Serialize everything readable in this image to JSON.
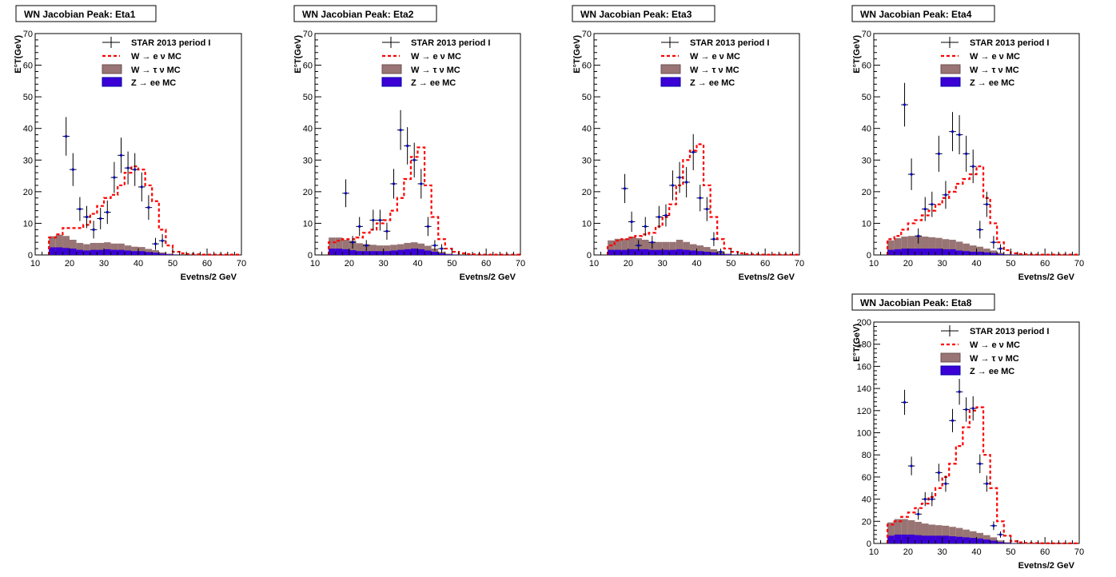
{
  "chart_data": [
    {
      "type": "histogram",
      "title": "WN Jacobian Peak: Eta1",
      "xlabel": "Evetns/2 GeV",
      "ylabel": "E°T(GeV)",
      "xlim": [
        10,
        70
      ],
      "ylim": [
        0,
        70
      ],
      "xticks": [
        10,
        20,
        30,
        40,
        50,
        60,
        70
      ],
      "yticks": [
        0,
        10,
        20,
        30,
        40,
        50,
        60,
        70
      ],
      "legend": [
        "STAR 2013 period I",
        "W → e ν MC",
        "W → τ ν MC",
        "Z → ee MC"
      ],
      "bin_edges": [
        14,
        16,
        18,
        20,
        22,
        24,
        26,
        28,
        30,
        32,
        34,
        36,
        38,
        40,
        42,
        44,
        46,
        48,
        50,
        52,
        54,
        56,
        58,
        60,
        62,
        64,
        66,
        68,
        70
      ],
      "series": [
        {
          "name": "W → e ν MC",
          "values": [
            5.5,
            6.5,
            8.5,
            8.5,
            8.5,
            9.5,
            13,
            15.5,
            18,
            19,
            22,
            26,
            28,
            27,
            22,
            17,
            8,
            3,
            1,
            0.5,
            0.3,
            0.2,
            0.1,
            0.1,
            0.1,
            0.1,
            0.1,
            0.1
          ]
        },
        {
          "name": "W → τ ν MC",
          "values": [
            3.5,
            4,
            3.8,
            2.8,
            2.2,
            2,
            2.2,
            2.2,
            2.2,
            2,
            2,
            1.6,
            1.4,
            1.3,
            1,
            0.8,
            0.4,
            0.2,
            0.1,
            0,
            0,
            0,
            0,
            0,
            0,
            0,
            0,
            0
          ]
        },
        {
          "name": "Z → ee MC",
          "values": [
            2.4,
            2.4,
            2.2,
            2,
            1.6,
            1.4,
            1.6,
            1.6,
            1.8,
            1.6,
            1.6,
            1.4,
            1.2,
            1.2,
            0.9,
            0.7,
            0.4,
            0.2,
            0.1,
            0,
            0,
            0,
            0,
            0,
            0,
            0,
            0,
            0
          ]
        },
        {
          "name": "STAR 2013 period I",
          "points": [
            [
              19,
              37.5
            ],
            [
              21,
              27
            ],
            [
              23,
              14.5
            ],
            [
              25,
              12
            ],
            [
              27,
              8
            ],
            [
              29,
              11.5
            ],
            [
              31,
              13.5
            ],
            [
              33,
              24.5
            ],
            [
              35,
              31.5
            ],
            [
              37,
              27.5
            ],
            [
              39,
              27
            ],
            [
              41,
              21.5
            ],
            [
              43,
              15
            ],
            [
              45,
              3.5
            ],
            [
              47,
              4.5
            ]
          ],
          "errors": [
            6.1,
            5.2,
            3.8,
            3.5,
            2.8,
            3.4,
            3.7,
            4.9,
            5.6,
            5.2,
            5.2,
            4.6,
            3.9,
            1.9,
            2.1
          ]
        }
      ]
    },
    {
      "type": "histogram",
      "title": "WN Jacobian Peak: Eta2",
      "xlabel": "Evetns/2 GeV",
      "ylabel": "E°T(GeV)",
      "xlim": [
        10,
        70
      ],
      "ylim": [
        0,
        70
      ],
      "xticks": [
        10,
        20,
        30,
        40,
        50,
        60,
        70
      ],
      "yticks": [
        0,
        10,
        20,
        30,
        40,
        50,
        60,
        70
      ],
      "legend": [
        "STAR 2013 period I",
        "W → e ν MC",
        "W → τ ν MC",
        "Z → ee MC"
      ],
      "bin_edges": [
        14,
        16,
        18,
        20,
        22,
        24,
        26,
        28,
        30,
        32,
        34,
        36,
        38,
        40,
        42,
        44,
        46,
        48,
        50,
        52,
        54,
        56,
        58,
        60,
        62,
        64,
        66,
        68,
        70
      ],
      "series": [
        {
          "name": "W → e ν MC",
          "values": [
            4,
            4.5,
            5,
            5,
            5.5,
            7,
            8,
            10,
            11,
            14,
            18,
            24,
            31,
            34,
            22,
            12,
            5,
            2,
            1,
            0.5,
            0.3,
            0.2,
            0.1,
            0.1,
            0.1,
            0.1,
            0.1,
            0.1
          ]
        },
        {
          "name": "W → τ ν MC",
          "values": [
            3.5,
            3.5,
            3,
            3,
            2.5,
            2.2,
            2,
            1.8,
            1.8,
            1.8,
            1.8,
            2,
            2,
            1.8,
            1.5,
            1,
            0.5,
            0.2,
            0.1,
            0,
            0,
            0,
            0,
            0,
            0,
            0,
            0,
            0
          ]
        },
        {
          "name": "Z → ee MC",
          "values": [
            2,
            2,
            1.8,
            1.5,
            1.2,
            1.2,
            1.2,
            1.2,
            1.2,
            1.4,
            1.6,
            1.8,
            2,
            1.8,
            1.4,
            1,
            0.5,
            0.2,
            0.1,
            0,
            0,
            0,
            0,
            0,
            0,
            0,
            0,
            0
          ]
        },
        {
          "name": "STAR 2013 period I",
          "points": [
            [
              19,
              19.5
            ],
            [
              21,
              4
            ],
            [
              23,
              9
            ],
            [
              25,
              3
            ],
            [
              27,
              11
            ],
            [
              29,
              11
            ],
            [
              31,
              7.5
            ],
            [
              33,
              22.5
            ],
            [
              35,
              39.5
            ],
            [
              37,
              34.5
            ],
            [
              39,
              30
            ],
            [
              41,
              22.5
            ],
            [
              43,
              9
            ],
            [
              45,
              3
            ],
            [
              47,
              2
            ]
          ],
          "errors": [
            4.4,
            2,
            3,
            1.7,
            3.3,
            3.3,
            2.7,
            4.7,
            6.3,
            5.9,
            5.5,
            4.7,
            3,
            1.7,
            1.4
          ]
        }
      ]
    },
    {
      "type": "histogram",
      "title": "WN Jacobian Peak: Eta3",
      "xlabel": "Evetns/2 GeV",
      "ylabel": "E°T(GeV)",
      "xlim": [
        10,
        70
      ],
      "ylim": [
        0,
        70
      ],
      "xticks": [
        10,
        20,
        30,
        40,
        50,
        60,
        70
      ],
      "yticks": [
        0,
        10,
        20,
        30,
        40,
        50,
        60,
        70
      ],
      "legend": [
        "STAR 2013 period I",
        "W → e ν MC",
        "W → τ ν MC",
        "Z → ee MC"
      ],
      "bin_edges": [
        14,
        16,
        18,
        20,
        22,
        24,
        26,
        28,
        30,
        32,
        34,
        36,
        38,
        40,
        42,
        44,
        46,
        48,
        50,
        52,
        54,
        56,
        58,
        60,
        62,
        64,
        66,
        68,
        70
      ],
      "series": [
        {
          "name": "W → e ν MC",
          "values": [
            3,
            4.5,
            5,
            5.5,
            6,
            6.5,
            7,
            9,
            12,
            16,
            22,
            30,
            33,
            35,
            22,
            12,
            5,
            2,
            1,
            0.5,
            0.3,
            0.2,
            0.1,
            0.1,
            0.1,
            0.1,
            0.1,
            0.1
          ]
        },
        {
          "name": "W → τ ν MC",
          "values": [
            3,
            3.5,
            3.5,
            4,
            3.5,
            3,
            2.5,
            2.5,
            2.5,
            2.5,
            3,
            2.5,
            2,
            1.8,
            1.5,
            1,
            0.5,
            0.2,
            0.1,
            0,
            0,
            0,
            0,
            0,
            0,
            0,
            0,
            0
          ]
        },
        {
          "name": "Z → ee MC",
          "values": [
            1.6,
            1.6,
            1.6,
            1.8,
            1.8,
            1.8,
            1.6,
            1.6,
            1.6,
            1.6,
            1.8,
            1.6,
            1.4,
            1.2,
            1,
            0.8,
            0.4,
            0.2,
            0.1,
            0,
            0,
            0,
            0,
            0,
            0,
            0,
            0,
            0
          ]
        },
        {
          "name": "STAR 2013 period I",
          "points": [
            [
              19,
              21
            ],
            [
              21,
              10.5
            ],
            [
              23,
              3
            ],
            [
              25,
              9
            ],
            [
              27,
              4
            ],
            [
              29,
              12
            ],
            [
              31,
              12.5
            ],
            [
              33,
              22
            ],
            [
              35,
              24.5
            ],
            [
              37,
              23
            ],
            [
              39,
              32.5
            ],
            [
              41,
              18
            ],
            [
              43,
              14.5
            ],
            [
              45,
              5
            ],
            [
              47,
              1
            ]
          ],
          "errors": [
            4.6,
            3.2,
            1.7,
            3,
            2,
            3.5,
            3.5,
            4.7,
            4.9,
            4.8,
            5.7,
            4.2,
            3.8,
            2.2,
            1
          ]
        }
      ]
    },
    {
      "type": "histogram",
      "title": "WN Jacobian Peak: Eta4",
      "xlabel": "Evetns/2 GeV",
      "ylabel": "E°T(GeV)",
      "xlim": [
        10,
        70
      ],
      "ylim": [
        0,
        70
      ],
      "xticks": [
        10,
        20,
        30,
        40,
        50,
        60,
        70
      ],
      "yticks": [
        0,
        10,
        20,
        30,
        40,
        50,
        60,
        70
      ],
      "legend": [
        "STAR 2013 period I",
        "W → e ν MC",
        "W → τ ν MC",
        "Z → ee MC"
      ],
      "bin_edges": [
        14,
        16,
        18,
        20,
        22,
        24,
        26,
        28,
        30,
        32,
        34,
        36,
        38,
        40,
        42,
        44,
        46,
        48,
        50,
        52,
        54,
        56,
        58,
        60,
        62,
        64,
        66,
        68,
        70
      ],
      "series": [
        {
          "name": "W → e ν MC",
          "values": [
            5,
            6,
            8,
            10,
            11,
            12.5,
            14,
            16,
            18,
            20,
            22.5,
            24,
            25.5,
            28,
            18,
            10,
            4,
            1.5,
            0.5,
            0.3,
            0.2,
            0.1,
            0.1,
            0.1,
            0.1,
            0.1,
            0.1,
            0.1
          ]
        },
        {
          "name": "W → τ ν MC",
          "values": [
            3,
            3.5,
            3.8,
            4,
            4,
            3.8,
            3.6,
            3.4,
            3.2,
            3,
            2.8,
            2.4,
            2,
            1.6,
            1.2,
            0.8,
            0.4,
            0.2,
            0.1,
            0,
            0,
            0,
            0,
            0,
            0,
            0,
            0,
            0
          ]
        },
        {
          "name": "Z → ee MC",
          "values": [
            1.6,
            1.8,
            2,
            2,
            2,
            2,
            2,
            2,
            1.8,
            1.8,
            1.4,
            1.2,
            1,
            1,
            0.8,
            0.6,
            0.3,
            0.1,
            0.1,
            0,
            0,
            0,
            0,
            0,
            0,
            0,
            0,
            0
          ]
        },
        {
          "name": "STAR 2013 period I",
          "points": [
            [
              19,
              47.5
            ],
            [
              21,
              25.5
            ],
            [
              23,
              6
            ],
            [
              25,
              14.5
            ],
            [
              27,
              16
            ],
            [
              29,
              32
            ],
            [
              31,
              19
            ],
            [
              33,
              39
            ],
            [
              35,
              38
            ],
            [
              37,
              32
            ],
            [
              39,
              28
            ],
            [
              41,
              8
            ],
            [
              43,
              16
            ],
            [
              45,
              4
            ],
            [
              47,
              2
            ]
          ],
          "errors": [
            6.9,
            5,
            2.4,
            3.8,
            4,
            5.7,
            4.4,
            6.2,
            6.2,
            5.7,
            5.3,
            2.8,
            4,
            2,
            1.4
          ]
        }
      ]
    },
    {
      "type": "histogram",
      "title": "WN Jacobian Peak: Eta8",
      "xlabel": "Evetns/2 GeV",
      "ylabel": "E°T(GeV)",
      "xlim": [
        10,
        70
      ],
      "ylim": [
        0,
        200
      ],
      "xticks": [
        10,
        20,
        30,
        40,
        50,
        60,
        70
      ],
      "yticks": [
        0,
        20,
        40,
        60,
        80,
        100,
        120,
        140,
        160,
        180,
        200
      ],
      "legend": [
        "STAR 2013 period I",
        "W → e ν MC",
        "W → τ ν MC",
        "Z → ee MC"
      ],
      "bin_edges": [
        14,
        16,
        18,
        20,
        22,
        24,
        26,
        28,
        30,
        32,
        34,
        36,
        38,
        40,
        42,
        44,
        46,
        48,
        50,
        52,
        54,
        56,
        58,
        60,
        62,
        64,
        66,
        68,
        70
      ],
      "series": [
        {
          "name": "W → e ν MC",
          "values": [
            17,
            20,
            24,
            28,
            32,
            36,
            42,
            50,
            60,
            72,
            88,
            105,
            120,
            123,
            80,
            50,
            20,
            7,
            2,
            1,
            0.5,
            0.3,
            0.2,
            0.2,
            0.1,
            0.1,
            0.1,
            0.1
          ]
        },
        {
          "name": "W → τ ν MC",
          "values": [
            12,
            14,
            14,
            13,
            12,
            11,
            10,
            9.5,
            9,
            8.5,
            8,
            7,
            6,
            5,
            4,
            3,
            1.5,
            0.6,
            0.2,
            0,
            0,
            0,
            0,
            0,
            0,
            0,
            0,
            0
          ]
        },
        {
          "name": "Z → ee MC",
          "values": [
            7,
            8,
            8,
            8,
            7.5,
            7,
            7,
            7,
            7,
            6.5,
            6,
            5.5,
            5,
            4.5,
            3.5,
            2.5,
            1.2,
            0.5,
            0.2,
            0,
            0,
            0,
            0,
            0,
            0,
            0,
            0,
            0
          ]
        },
        {
          "name": "STAR 2013 period I",
          "points": [
            [
              19,
              127.5
            ],
            [
              21,
              70
            ],
            [
              23,
              26.5
            ],
            [
              25,
              40
            ],
            [
              27,
              40
            ],
            [
              29,
              64
            ],
            [
              31,
              54
            ],
            [
              33,
              111
            ],
            [
              35,
              137
            ],
            [
              37,
              121
            ],
            [
              39,
              122
            ],
            [
              41,
              72
            ],
            [
              43,
              54
            ],
            [
              45,
              16
            ],
            [
              47,
              8
            ]
          ],
          "errors": [
            11.3,
            8.4,
            5.1,
            6.3,
            6.3,
            8,
            7.3,
            10.5,
            11.7,
            11,
            11,
            8.5,
            7.3,
            4,
            2.8
          ]
        }
      ]
    }
  ]
}
